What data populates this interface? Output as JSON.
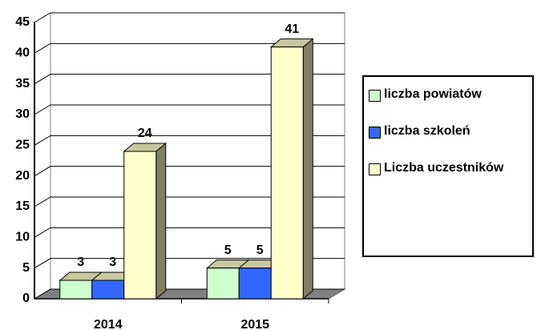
{
  "chart_data": {
    "type": "bar",
    "categories": [
      "2014",
      "2015"
    ],
    "series": [
      {
        "name": "liczba powiatów",
        "color": "#ccffcc",
        "values": [
          3,
          5
        ]
      },
      {
        "name": "liczba szkoleń",
        "color": "#3366ff",
        "values": [
          3,
          5
        ]
      },
      {
        "name": "Liczba uczestników",
        "color": "#ffffcc",
        "values": [
          24,
          41
        ]
      }
    ],
    "ylim": [
      0,
      45
    ],
    "yticks": [
      0,
      5,
      10,
      15,
      20,
      25,
      30,
      35,
      40,
      45
    ],
    "grid": true,
    "legend": "right"
  }
}
